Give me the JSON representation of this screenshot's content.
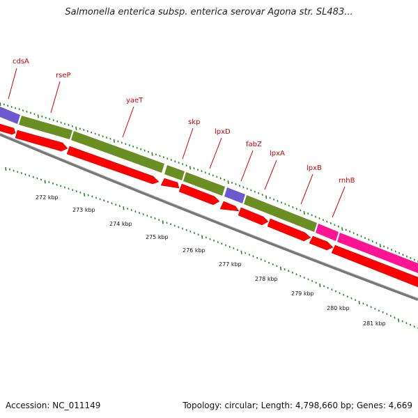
{
  "header": {
    "title": "Salmonella enterica subsp. enterica serovar Agona str. SL483..."
  },
  "footer": {
    "accession": "Accession: NC_011149",
    "summary": "Topology: circular; Length: 4,798,660 bp; Genes: 4,669"
  },
  "colors": {
    "cds_arrow": "#ff0000",
    "gene_olive": "#6b8e23",
    "gene_purple": "#6a5acd",
    "gene_magenta": "#ff1493",
    "backbone": "#888888",
    "label_line": "#cc0000",
    "ticks": "#1a8a1a"
  },
  "genes": [
    {
      "label": "cdsA"
    },
    {
      "label": "rseP"
    },
    {
      "label": "yaeT"
    },
    {
      "label": "skp"
    },
    {
      "label": "lpxD"
    },
    {
      "label": "fabZ"
    },
    {
      "label": "lpxA"
    },
    {
      "label": "lpxB"
    },
    {
      "label": "rnhB"
    }
  ],
  "ruler": [
    {
      "label": "272 kbp"
    },
    {
      "label": "273 kbp"
    },
    {
      "label": "274 kbp"
    },
    {
      "label": "275 kbp"
    },
    {
      "label": "276 kbp"
    },
    {
      "label": "277 kbp"
    },
    {
      "label": "278 kbp"
    },
    {
      "label": "279 kbp"
    },
    {
      "label": "280 kbp"
    },
    {
      "label": "281 kbp"
    }
  ]
}
